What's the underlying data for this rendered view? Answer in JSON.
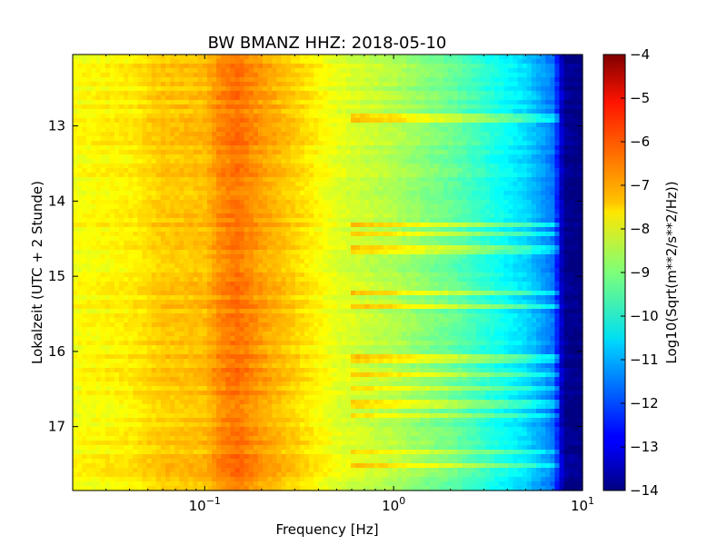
{
  "chart_data": {
    "type": "heatmap",
    "title": "BW BMANZ HHZ: 2018-05-10",
    "xlabel": "Frequency [Hz]",
    "ylabel": "Lokalzeit (UTC + 2 Stunde)",
    "x_scale": "log",
    "xlim": [
      0.02,
      10
    ],
    "x_ticks": [
      {
        "value": 0.1,
        "base": "10",
        "exp": "−1"
      },
      {
        "value": 1,
        "base": "10",
        "exp": "0"
      },
      {
        "value": 10,
        "base": "10",
        "exp": "1"
      }
    ],
    "ylim": [
      12.05,
      17.85
    ],
    "y_inverted": true,
    "y_ticks": [
      {
        "value": 13,
        "label": "13"
      },
      {
        "value": 14,
        "label": "14"
      },
      {
        "value": 15,
        "label": "15"
      },
      {
        "value": 16,
        "label": "16"
      },
      {
        "value": 17,
        "label": "17"
      }
    ],
    "colorbar": {
      "label": "Log10(Sqrt(m**2/s**2/Hz))",
      "colormap": "jet",
      "range": [
        -14,
        -4
      ],
      "ticks": [
        {
          "value": -4,
          "label": "−4"
        },
        {
          "value": -5,
          "label": "−5"
        },
        {
          "value": -6,
          "label": "−6"
        },
        {
          "value": -7,
          "label": "−7"
        },
        {
          "value": -8,
          "label": "−8"
        },
        {
          "value": -9,
          "label": "−9"
        },
        {
          "value": -10,
          "label": "−10"
        },
        {
          "value": -11,
          "label": "−11"
        },
        {
          "value": -12,
          "label": "−12"
        },
        {
          "value": -13,
          "label": "−13"
        },
        {
          "value": -14,
          "label": "−14"
        }
      ]
    },
    "spectrum_profile": [
      {
        "f": 0.02,
        "v": -7.8
      },
      {
        "f": 0.04,
        "v": -7.6
      },
      {
        "f": 0.06,
        "v": -7.2
      },
      {
        "f": 0.1,
        "v": -7.1
      },
      {
        "f": 0.12,
        "v": -6.6
      },
      {
        "f": 0.15,
        "v": -6.35
      },
      {
        "f": 0.2,
        "v": -6.8
      },
      {
        "f": 0.3,
        "v": -7.3
      },
      {
        "f": 0.5,
        "v": -8.0
      },
      {
        "f": 1.0,
        "v": -8.5
      },
      {
        "f": 2.0,
        "v": -9.2
      },
      {
        "f": 3.0,
        "v": -9.8
      },
      {
        "f": 5.0,
        "v": -10.6
      },
      {
        "f": 7.0,
        "v": -11.6
      },
      {
        "f": 8.0,
        "v": -13.8
      },
      {
        "f": 10.0,
        "v": -14.0
      }
    ],
    "noisy_times": [
      12.9,
      14.3,
      14.45,
      14.65,
      15.2,
      15.4,
      16.1,
      16.3,
      16.5,
      16.7,
      16.85,
      17.35,
      17.5
    ]
  }
}
